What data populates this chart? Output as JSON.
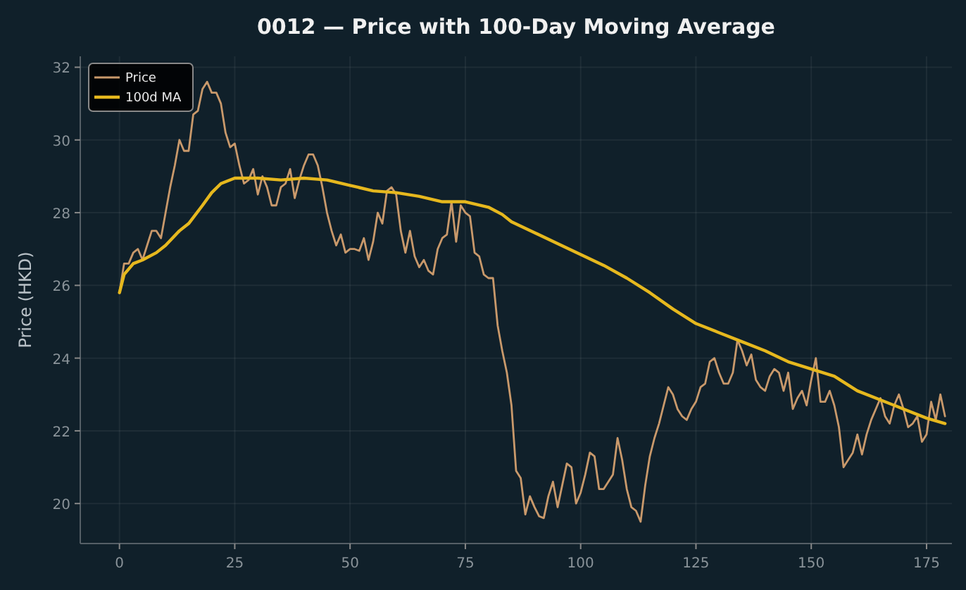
{
  "chart_data": {
    "type": "line",
    "title": "0012 — Price with 100-Day Moving Average",
    "ylabel": "Price (HKD)",
    "xlim": [
      -8.5,
      180.5
    ],
    "ylim": [
      18.9,
      32.3
    ],
    "xticks": [
      0,
      25,
      50,
      75,
      100,
      125,
      150,
      175
    ],
    "yticks": [
      20,
      22,
      24,
      26,
      28,
      30,
      32
    ],
    "grid": true,
    "legend": "top left",
    "series": [
      {
        "name": "Price",
        "color": "#c9996b",
        "x": [
          0,
          1,
          2,
          3,
          4,
          5,
          6,
          7,
          8,
          9,
          10,
          11,
          12,
          13,
          14,
          15,
          16,
          17,
          18,
          19,
          20,
          21,
          22,
          23,
          24,
          25,
          26,
          27,
          28,
          29,
          30,
          31,
          32,
          33,
          34,
          35,
          36,
          37,
          38,
          39,
          40,
          41,
          42,
          43,
          44,
          45,
          46,
          47,
          48,
          49,
          50,
          51,
          52,
          53,
          54,
          55,
          56,
          57,
          58,
          59,
          60,
          61,
          62,
          63,
          64,
          65,
          66,
          67,
          68,
          69,
          70,
          71,
          72,
          73,
          74,
          75,
          76,
          77,
          78,
          79,
          80,
          81,
          82,
          83,
          84,
          85,
          86,
          87,
          88,
          89,
          90,
          91,
          92,
          93,
          94,
          95,
          96,
          97,
          98,
          99,
          100,
          101,
          102,
          103,
          104,
          105,
          106,
          107,
          108,
          109,
          110,
          111,
          112,
          113,
          114,
          115,
          116,
          117,
          118,
          119,
          120,
          121,
          122,
          123,
          124,
          125,
          126,
          127,
          128,
          129,
          130,
          131,
          132,
          133,
          134,
          135,
          136,
          137,
          138,
          139,
          140,
          141,
          142,
          143,
          144,
          145,
          146,
          147,
          148,
          149,
          150,
          151,
          152,
          153,
          154,
          155,
          156,
          157,
          158,
          159,
          160,
          161,
          162,
          163,
          164,
          165,
          166,
          167,
          168,
          169,
          170,
          171,
          172,
          173,
          174,
          175,
          176,
          177,
          178,
          179
        ],
        "values": [
          25.8,
          26.6,
          26.6,
          26.9,
          27.0,
          26.7,
          27.1,
          27.5,
          27.5,
          27.3,
          28.0,
          28.7,
          29.3,
          30.0,
          29.7,
          29.7,
          30.7,
          30.8,
          31.4,
          31.6,
          31.3,
          31.3,
          31.0,
          30.2,
          29.8,
          29.9,
          29.3,
          28.8,
          28.9,
          29.2,
          28.5,
          29.0,
          28.7,
          28.2,
          28.2,
          28.7,
          28.8,
          29.2,
          28.4,
          28.9,
          29.3,
          29.6,
          29.6,
          29.3,
          28.7,
          28.0,
          27.5,
          27.1,
          27.4,
          26.9,
          27.0,
          27.0,
          26.95,
          27.3,
          26.7,
          27.2,
          28.0,
          27.7,
          28.6,
          28.7,
          28.5,
          27.5,
          26.9,
          27.5,
          26.8,
          26.5,
          26.7,
          26.4,
          26.3,
          27.0,
          27.3,
          27.4,
          28.3,
          27.2,
          28.2,
          28.0,
          27.9,
          26.9,
          26.8,
          26.3,
          26.2,
          26.2,
          24.9,
          24.2,
          23.6,
          22.7,
          20.9,
          20.7,
          19.7,
          20.2,
          19.9,
          19.65,
          19.6,
          20.2,
          20.6,
          19.9,
          20.5,
          21.1,
          21.0,
          20.0,
          20.3,
          20.8,
          21.4,
          21.3,
          20.4,
          20.4,
          20.6,
          20.8,
          21.8,
          21.2,
          20.4,
          19.9,
          19.8,
          19.5,
          20.5,
          21.3,
          21.8,
          22.2,
          22.7,
          23.2,
          23.0,
          22.6,
          22.4,
          22.3,
          22.6,
          22.8,
          23.2,
          23.3,
          23.9,
          24.0,
          23.6,
          23.3,
          23.3,
          23.6,
          24.5,
          24.2,
          23.8,
          24.1,
          23.4,
          23.2,
          23.1,
          23.5,
          23.7,
          23.6,
          23.1,
          23.6,
          22.6,
          22.9,
          23.1,
          22.7,
          23.4,
          24.0,
          22.8,
          22.8,
          23.1,
          22.7,
          22.1,
          21.0,
          21.2,
          21.4,
          21.9,
          21.35,
          21.9,
          22.3,
          22.6,
          22.9,
          22.4,
          22.2,
          22.7,
          23.0,
          22.6,
          22.1,
          22.2,
          22.4,
          21.7,
          21.9,
          22.8,
          22.3,
          23.0,
          22.4
        ]
      },
      {
        "name": "100d MA",
        "color": "#e6b81e",
        "x": [
          0,
          1,
          3,
          5,
          8,
          10,
          13,
          15,
          18,
          20,
          22,
          25,
          30,
          35,
          40,
          45,
          50,
          55,
          60,
          65,
          70,
          75,
          80,
          83,
          85,
          90,
          95,
          100,
          105,
          110,
          115,
          120,
          125,
          130,
          135,
          140,
          145,
          150,
          155,
          160,
          165,
          170,
          175,
          179
        ],
        "values": [
          25.8,
          26.3,
          26.6,
          26.7,
          26.9,
          27.1,
          27.5,
          27.7,
          28.2,
          28.55,
          28.8,
          28.95,
          28.95,
          28.9,
          28.95,
          28.9,
          28.75,
          28.6,
          28.55,
          28.45,
          28.3,
          28.3,
          28.15,
          27.95,
          27.75,
          27.45,
          27.15,
          26.85,
          26.55,
          26.2,
          25.8,
          25.35,
          24.95,
          24.7,
          24.45,
          24.2,
          23.9,
          23.7,
          23.5,
          23.1,
          22.85,
          22.6,
          22.35,
          22.2
        ]
      }
    ]
  }
}
